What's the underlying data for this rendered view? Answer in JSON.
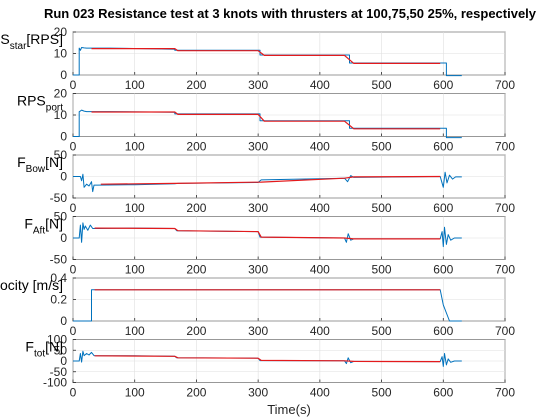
{
  "chart_data": {
    "type": "line",
    "title": "Run 023 Resistance test at 3 knots with thrusters at 100,75,50 25%, respectively",
    "xlabel": "Time(s)",
    "xlim": [
      0,
      700
    ],
    "xticks": [
      0,
      100,
      200,
      300,
      400,
      500,
      600,
      700
    ],
    "colors": {
      "signal": "#0072BD",
      "steady": "#E41A1C"
    },
    "subplots": [
      {
        "id": "rps-star",
        "ylabel_main": "RPS",
        "ylabel_sub": "star",
        "ylabel_unit": "[RPS]",
        "ylim": [
          0,
          20
        ],
        "yticks": [
          0,
          10,
          20
        ],
        "series": [
          {
            "name": "signal",
            "color": "#0072BD",
            "x": [
              0,
              10,
              10,
              12,
              14,
              18,
              22,
              60,
              165,
              165,
              300,
              303,
              303,
              445,
              448,
              448,
              600,
              605,
              605,
              630
            ],
            "y": [
              0,
              0,
              12.5,
              11.5,
              12.8,
              12.6,
              12.5,
              12.5,
              12.0,
              11.5,
              11.5,
              11.5,
              9.3,
              9.3,
              9.3,
              5.6,
              5.6,
              5.6,
              -0.3,
              -0.3
            ]
          },
          {
            "name": "steady",
            "color": "#E41A1C",
            "x": [
              30,
              165,
              170,
              300,
              310,
              440,
              455,
              595
            ],
            "y": [
              12.3,
              12.3,
              11.3,
              11.3,
              9.1,
              9.1,
              5.4,
              5.4
            ]
          }
        ]
      },
      {
        "id": "rps-port",
        "ylabel_main": "RPS",
        "ylabel_sub": "port",
        "ylabel_unit": "",
        "ylim": [
          0,
          20
        ],
        "yticks": [
          0,
          10,
          20
        ],
        "series": [
          {
            "name": "signal",
            "color": "#0072BD",
            "x": [
              0,
              10,
              10,
              14,
              18,
              22,
              60,
              165,
              165,
              300,
              303,
              303,
              445,
              448,
              448,
              600,
              605,
              605,
              630
            ],
            "y": [
              0,
              0,
              11.5,
              12.3,
              11.8,
              11.6,
              11.6,
              11.3,
              10.5,
              10.5,
              10.5,
              7.3,
              7.3,
              7.3,
              3.8,
              3.8,
              3.8,
              -0.5,
              -0.5
            ]
          },
          {
            "name": "steady",
            "color": "#E41A1C",
            "x": [
              30,
              165,
              170,
              300,
              310,
              440,
              455,
              595
            ],
            "y": [
              11.4,
              11.4,
              10.3,
              10.3,
              7.1,
              7.1,
              3.6,
              3.6
            ]
          }
        ]
      },
      {
        "id": "f-bow",
        "ylabel_main": "F",
        "ylabel_sub": "Bow",
        "ylabel_unit": "[N]",
        "ylim": [
          -50,
          50
        ],
        "yticks": [
          -50,
          0,
          50
        ],
        "series": [
          {
            "name": "signal",
            "color": "#0072BD",
            "x": [
              0,
              12,
              14,
              16,
              18,
              22,
              26,
              30,
              32,
              34,
              40,
              100,
              165,
              170,
              300,
              305,
              440,
              445,
              450,
              455,
              595,
              600,
              603,
              606,
              610,
              615,
              620,
              630
            ],
            "y": [
              0,
              0,
              -10,
              5,
              -25,
              -18,
              -22,
              -12,
              -35,
              -20,
              -20,
              -19,
              -17,
              -16,
              -14,
              -8,
              -4,
              -12,
              2,
              -2,
              0,
              -25,
              10,
              -15,
              3,
              -6,
              -1,
              -1
            ]
          },
          {
            "name": "steady",
            "color": "#E41A1C",
            "x": [
              45,
              165,
              305,
              440,
              455,
              595
            ],
            "y": [
              -18,
              -16,
              -13,
              -4,
              -1,
              0
            ]
          }
        ]
      },
      {
        "id": "f-aft",
        "ylabel_main": "F",
        "ylabel_sub": "Aft",
        "ylabel_unit": "[N]",
        "ylim": [
          -50,
          50
        ],
        "yticks": [
          -50,
          0,
          50
        ],
        "series": [
          {
            "name": "signal",
            "color": "#0072BD",
            "x": [
              0,
              10,
              12,
              14,
              16,
              18,
              20,
              24,
              28,
              32,
              40,
              100,
              165,
              168,
              300,
              303,
              440,
              443,
              446,
              450,
              455,
              595,
              598,
              600,
              602,
              605,
              608,
              612,
              618,
              630
            ],
            "y": [
              0,
              0,
              30,
              -10,
              35,
              20,
              28,
              18,
              30,
              22,
              22,
              23,
              22,
              17,
              15,
              2,
              0,
              -10,
              10,
              -5,
              -2,
              -2,
              15,
              -20,
              25,
              -15,
              8,
              -5,
              0,
              0
            ]
          },
          {
            "name": "steady",
            "color": "#E41A1C",
            "x": [
              35,
              165,
              170,
              300,
              305,
              440,
              455,
              595
            ],
            "y": [
              23,
              22,
              17,
              15,
              2,
              0,
              -2,
              -2
            ]
          }
        ]
      },
      {
        "id": "vessel-velocity",
        "ylabel_main": "Vessel Velocity [m/s]",
        "ylabel_sub": "",
        "ylabel_unit": "",
        "ylim": [
          0,
          0.4
        ],
        "yticks": [
          0,
          0.2,
          0.4
        ],
        "series": [
          {
            "name": "signal",
            "color": "#0072BD",
            "x": [
              0,
              30,
              30,
              300,
              595,
              600,
              610,
              630
            ],
            "y": [
              0,
              0,
              0.29,
              0.29,
              0.29,
              0.15,
              0,
              0
            ]
          },
          {
            "name": "steady",
            "color": "#E41A1C",
            "x": [
              35,
              595
            ],
            "y": [
              0.29,
              0.29
            ]
          }
        ]
      },
      {
        "id": "f-tot",
        "ylabel_main": "F",
        "ylabel_sub": "tot",
        "ylabel_unit": "[N]",
        "ylim": [
          -100,
          100
        ],
        "yticks": [
          -100,
          -50,
          0,
          50,
          100
        ],
        "series": [
          {
            "name": "signal",
            "color": "#0072BD",
            "x": [
              0,
              10,
              12,
              14,
              16,
              18,
              22,
              26,
              30,
              34,
              40,
              100,
              165,
              168,
              300,
              303,
              440,
              443,
              446,
              450,
              455,
              595,
              598,
              600,
              602,
              605,
              608,
              612,
              618,
              630
            ],
            "y": [
              0,
              0,
              35,
              -5,
              45,
              25,
              35,
              28,
              40,
              25,
              24,
              24,
              22,
              15,
              13,
              2,
              1,
              -12,
              15,
              -8,
              -2,
              -3,
              20,
              -25,
              35,
              -18,
              10,
              -6,
              0,
              0
            ]
          },
          {
            "name": "steady",
            "color": "#E41A1C",
            "x": [
              35,
              165,
              170,
              300,
              305,
              440,
              455,
              595
            ],
            "y": [
              24,
              22,
              15,
              13,
              3,
              1,
              -2,
              -3
            ]
          }
        ]
      }
    ]
  }
}
